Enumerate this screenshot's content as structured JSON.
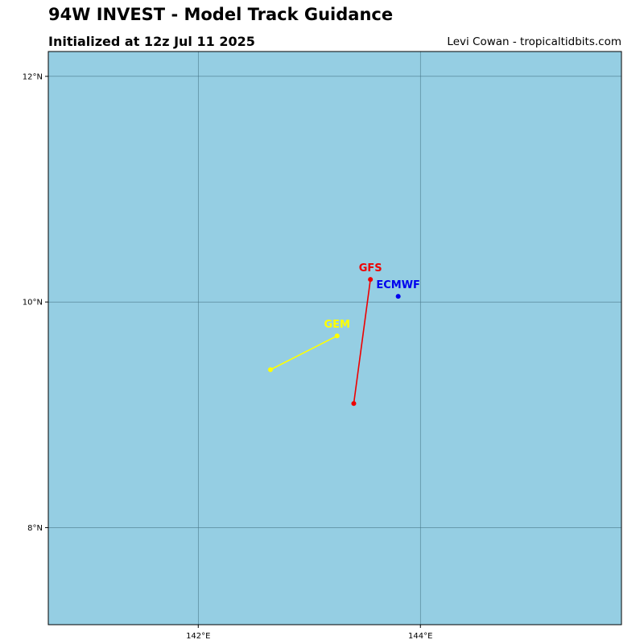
{
  "header": {
    "title": "94W INVEST - Model Track Guidance",
    "subtitle": "Initialized at 12z Jul 11 2025",
    "credit": "Levi Cowan - tropicaltidbits.com"
  },
  "map": {
    "ocean_color": "#95cee3",
    "grid_color": "#4a7a8c",
    "lon_range": [
      140.65,
      145.81
    ],
    "lat_range": [
      7.14,
      12.22
    ],
    "lat_ticks": [
      {
        "value": 12,
        "label": "12°N"
      },
      {
        "value": 10,
        "label": "10°N"
      },
      {
        "value": 8,
        "label": "8°N"
      }
    ],
    "lon_ticks": [
      {
        "value": 142,
        "label": "142°E"
      },
      {
        "value": 144,
        "label": "144°E"
      }
    ]
  },
  "chart_data": {
    "type": "scatter",
    "title": "94W INVEST - Model Track Guidance",
    "xlabel": "",
    "ylabel": "",
    "xlim": [
      140.65,
      145.81
    ],
    "ylim": [
      7.14,
      12.22
    ],
    "series": [
      {
        "name": "GFS",
        "color": "#ee0000",
        "points": [
          [
            143.55,
            10.2
          ],
          [
            143.4,
            9.1
          ]
        ]
      },
      {
        "name": "ECMWF",
        "color": "#0000ee",
        "points": [
          [
            143.8,
            10.05
          ]
        ]
      },
      {
        "name": "GEM",
        "color": "#ffff00",
        "points": [
          [
            143.25,
            9.7
          ],
          [
            142.65,
            9.4
          ]
        ]
      }
    ]
  }
}
